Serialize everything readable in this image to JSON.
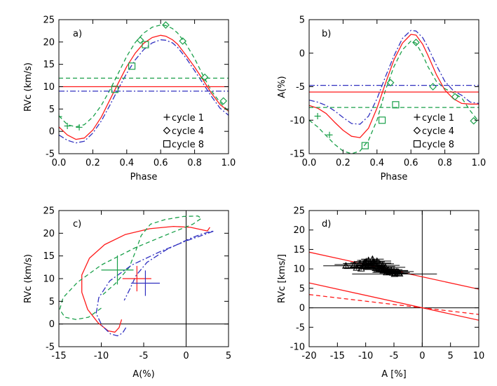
{
  "colors": {
    "red": "#ff1a1a",
    "green": "#1aa04a",
    "blue": "#3030c0",
    "black": "#000000"
  },
  "chart_data": [
    {
      "type": "line",
      "panel_label": "a)",
      "xlabel": "Phase",
      "ylabel": "RVc (km/s)",
      "xlim": [
        0.0,
        1.0
      ],
      "ylim": [
        -5,
        25
      ],
      "xticks": [
        "0.0",
        "0.2",
        "0.4",
        "0.6",
        "0.8",
        "1.0"
      ],
      "yticks": [
        "-5",
        "0",
        "5",
        "10",
        "15",
        "20",
        "25"
      ],
      "series": [
        {
          "color": "red",
          "style": "solid",
          "x": [
            0.0,
            0.05,
            0.1,
            0.15,
            0.2,
            0.25,
            0.3,
            0.35,
            0.4,
            0.45,
            0.5,
            0.55,
            0.6,
            0.63,
            0.67,
            0.7,
            0.75,
            0.8,
            0.85,
            0.9,
            0.95,
            1.0
          ],
          "y": [
            1.0,
            -0.8,
            -1.8,
            -1.5,
            0.3,
            3.2,
            7.0,
            10.8,
            14.5,
            17.5,
            19.7,
            21.0,
            21.5,
            21.3,
            20.5,
            19.5,
            17.0,
            14.4,
            11.5,
            8.5,
            6.0,
            4.5
          ]
        },
        {
          "color": "green",
          "style": "dashed",
          "x": [
            0.0,
            0.05,
            0.1,
            0.15,
            0.2,
            0.25,
            0.3,
            0.35,
            0.4,
            0.45,
            0.5,
            0.55,
            0.6,
            0.63,
            0.67,
            0.7,
            0.75,
            0.8,
            0.85,
            0.9,
            0.95,
            1.0
          ],
          "y": [
            3.5,
            1.5,
            1.0,
            1.5,
            3.2,
            5.8,
            9.2,
            13.0,
            16.8,
            19.9,
            22.0,
            23.3,
            23.8,
            23.7,
            23.0,
            22.0,
            19.5,
            16.3,
            12.5,
            9.0,
            6.5,
            4.5
          ]
        },
        {
          "color": "blue",
          "style": "dashdot",
          "x": [
            0.0,
            0.05,
            0.1,
            0.15,
            0.2,
            0.25,
            0.3,
            0.35,
            0.4,
            0.45,
            0.5,
            0.55,
            0.6,
            0.63,
            0.67,
            0.7,
            0.75,
            0.8,
            0.85,
            0.9,
            0.95,
            1.0
          ],
          "y": [
            -0.8,
            -2.0,
            -2.6,
            -2.2,
            -0.4,
            2.3,
            5.8,
            9.5,
            13.0,
            16.0,
            18.3,
            19.8,
            20.5,
            20.4,
            19.8,
            18.8,
            16.4,
            13.6,
            10.7,
            7.8,
            5.2,
            3.6
          ]
        },
        {
          "color": "red",
          "style": "solid",
          "x": [
            0.0,
            1.0
          ],
          "y": [
            10.0,
            10.0
          ]
        },
        {
          "color": "green",
          "style": "dashed",
          "x": [
            0.0,
            1.0
          ],
          "y": [
            11.9,
            11.9
          ]
        },
        {
          "color": "blue",
          "style": "dashdot",
          "x": [
            0.0,
            1.0
          ],
          "y": [
            9.0,
            9.0
          ]
        }
      ],
      "markers": [
        {
          "shape": "plus",
          "color": "green",
          "x": 0.0,
          "y": 3.3
        },
        {
          "shape": "plus",
          "color": "green",
          "x": 0.05,
          "y": 1.2
        },
        {
          "shape": "plus",
          "color": "green",
          "x": 0.12,
          "y": 0.9
        },
        {
          "shape": "square",
          "color": "green",
          "x": 0.33,
          "y": 9.4
        },
        {
          "shape": "square",
          "color": "green",
          "x": 0.43,
          "y": 14.6
        },
        {
          "shape": "diamond",
          "color": "green",
          "x": 0.48,
          "y": 20.4
        },
        {
          "shape": "square",
          "color": "green",
          "x": 0.51,
          "y": 19.4
        },
        {
          "shape": "diamond",
          "color": "green",
          "x": 0.63,
          "y": 23.8
        },
        {
          "shape": "diamond",
          "color": "green",
          "x": 0.73,
          "y": 20.2
        },
        {
          "shape": "diamond",
          "color": "green",
          "x": 0.86,
          "y": 12.1
        },
        {
          "shape": "diamond",
          "color": "green",
          "x": 0.97,
          "y": 6.8
        }
      ],
      "legend": {
        "position": "bottom-right",
        "entries": [
          {
            "symbol": "plus",
            "label": "cycle 1"
          },
          {
            "symbol": "diamond",
            "label": "cycle 4"
          },
          {
            "symbol": "square",
            "label": "cycle 8"
          }
        ]
      }
    },
    {
      "type": "line",
      "panel_label": "b)",
      "xlabel": "Phase",
      "ylabel": "A(%)",
      "xlim": [
        0.0,
        1.0
      ],
      "ylim": [
        -15,
        5
      ],
      "xticks": [
        "0.0",
        "0.2",
        "0.4",
        "0.6",
        "0.8",
        "1.0"
      ],
      "yticks": [
        "-15",
        "-10",
        "-5",
        "0",
        "5"
      ],
      "series": [
        {
          "color": "red",
          "style": "solid",
          "x": [
            0.0,
            0.05,
            0.1,
            0.15,
            0.2,
            0.25,
            0.3,
            0.35,
            0.4,
            0.45,
            0.5,
            0.55,
            0.6,
            0.63,
            0.67,
            0.7,
            0.75,
            0.8,
            0.85,
            0.9,
            0.95,
            1.0
          ],
          "y": [
            -7.8,
            -8.2,
            -9.0,
            -10.3,
            -11.5,
            -12.4,
            -12.6,
            -11.2,
            -8.2,
            -4.5,
            -1.0,
            1.5,
            2.8,
            2.7,
            1.3,
            -0.3,
            -3.2,
            -5.5,
            -6.8,
            -7.5,
            -7.6,
            -7.6
          ]
        },
        {
          "color": "green",
          "style": "dashed",
          "x": [
            0.0,
            0.05,
            0.1,
            0.15,
            0.2,
            0.25,
            0.3,
            0.35,
            0.4,
            0.45,
            0.5,
            0.55,
            0.6,
            0.63,
            0.67,
            0.7,
            0.75,
            0.8,
            0.85,
            0.9,
            0.95,
            1.0
          ],
          "y": [
            -10.0,
            -11.0,
            -12.3,
            -13.6,
            -14.6,
            -15.0,
            -14.6,
            -13.0,
            -10.0,
            -5.5,
            -2.0,
            0.5,
            1.8,
            1.5,
            -0.3,
            -2.0,
            -4.2,
            -5.3,
            -5.9,
            -6.7,
            -8.6,
            -10.2
          ]
        },
        {
          "color": "blue",
          "style": "dashdot",
          "x": [
            0.0,
            0.05,
            0.1,
            0.15,
            0.2,
            0.25,
            0.3,
            0.35,
            0.4,
            0.45,
            0.5,
            0.55,
            0.6,
            0.63,
            0.67,
            0.7,
            0.75,
            0.8,
            0.85,
            0.9,
            0.95,
            1.0
          ],
          "y": [
            -7.0,
            -7.3,
            -7.8,
            -8.6,
            -9.6,
            -10.5,
            -10.6,
            -9.4,
            -6.8,
            -3.5,
            -0.4,
            2.2,
            3.4,
            3.3,
            2.3,
            0.9,
            -1.8,
            -4.2,
            -5.6,
            -6.3,
            -7.3,
            -7.5
          ]
        },
        {
          "color": "red",
          "style": "solid",
          "x": [
            0.0,
            1.0
          ],
          "y": [
            -5.8,
            -5.8
          ]
        },
        {
          "color": "green",
          "style": "dashed",
          "x": [
            0.0,
            1.0
          ],
          "y": [
            -8.1,
            -8.1
          ]
        },
        {
          "color": "blue",
          "style": "dashdot",
          "x": [
            0.0,
            1.0
          ],
          "y": [
            -4.8,
            -4.8
          ]
        }
      ],
      "markers": [
        {
          "shape": "plus",
          "color": "green",
          "x": 0.05,
          "y": -9.4
        },
        {
          "shape": "plus",
          "color": "green",
          "x": 0.12,
          "y": -12.2
        },
        {
          "shape": "square",
          "color": "green",
          "x": 0.33,
          "y": -13.8
        },
        {
          "shape": "square",
          "color": "green",
          "x": 0.43,
          "y": -10.0
        },
        {
          "shape": "diamond",
          "color": "green",
          "x": 0.48,
          "y": -4.4
        },
        {
          "shape": "square",
          "color": "green",
          "x": 0.51,
          "y": -7.7
        },
        {
          "shape": "diamond",
          "color": "green",
          "x": 0.63,
          "y": 1.6
        },
        {
          "shape": "diamond",
          "color": "green",
          "x": 0.73,
          "y": -5.0
        },
        {
          "shape": "diamond",
          "color": "green",
          "x": 0.86,
          "y": -6.5
        },
        {
          "shape": "diamond",
          "color": "green",
          "x": 0.97,
          "y": -10.1
        }
      ],
      "legend": {
        "position": "bottom-right",
        "entries": [
          {
            "symbol": "plus",
            "label": "cycle 1"
          },
          {
            "symbol": "diamond",
            "label": "cycle 4"
          },
          {
            "symbol": "square",
            "label": "cycle 8"
          }
        ]
      }
    },
    {
      "type": "line",
      "panel_label": "c)",
      "xlabel": "A(%)",
      "ylabel": "RVc (km/s)",
      "xlim": [
        -15,
        5
      ],
      "ylim": [
        -5,
        25
      ],
      "xticks": [
        "-15",
        "-10",
        "-5",
        "0",
        "5"
      ],
      "yticks": [
        "-5",
        "0",
        "5",
        "10",
        "15",
        "20",
        "25"
      ],
      "series": [
        {
          "color": "red",
          "style": "solid",
          "x": [
            -7.6,
            -7.9,
            -8.4,
            -9.2,
            -10.4,
            -11.6,
            -12.3,
            -12.3,
            -11.4,
            -9.6,
            -7.2,
            -4.3,
            -1.5,
            0.5,
            1.8,
            2.5,
            2.8
          ],
          "y": [
            1.0,
            -0.8,
            -1.8,
            -1.5,
            0.3,
            3.2,
            7.0,
            10.8,
            14.5,
            17.5,
            19.7,
            21.0,
            21.5,
            21.3,
            20.8,
            20.5,
            21.3
          ]
        },
        {
          "color": "green",
          "style": "dashed",
          "x": [
            -10.0,
            -11.5,
            -13.0,
            -14.3,
            -14.9,
            -14.5,
            -12.8,
            -10.0,
            -6.0,
            -2.0,
            0.8,
            1.8,
            1.4,
            -0.3,
            -2.5,
            -4.2,
            -5.3,
            -5.9,
            -6.7,
            -8.3,
            -9.8
          ],
          "y": [
            3.5,
            1.5,
            1.0,
            1.5,
            3.2,
            5.8,
            9.2,
            13.0,
            16.8,
            19.9,
            22.0,
            23.3,
            23.8,
            23.7,
            23.0,
            22.0,
            19.5,
            16.3,
            12.5,
            9.0,
            6.5
          ]
        },
        {
          "color": "blue",
          "style": "dashdot",
          "x": [
            -7.1,
            -7.5,
            -8.1,
            -8.9,
            -9.9,
            -10.6,
            -10.3,
            -9.0,
            -6.4,
            -3.0,
            0.0,
            2.3,
            3.3,
            3.0,
            1.8,
            0.4,
            -2.3,
            -4.6,
            -5.9,
            -6.6,
            -7.3
          ],
          "y": [
            -0.8,
            -2.0,
            -2.6,
            -2.2,
            -0.4,
            2.3,
            5.8,
            9.5,
            13.0,
            16.0,
            18.3,
            19.8,
            20.5,
            20.4,
            19.8,
            18.8,
            16.4,
            13.6,
            10.7,
            7.8,
            5.2
          ]
        }
      ],
      "reference_lines": {
        "x0": 0,
        "y0": 0
      },
      "crosses": [
        {
          "color": "green",
          "x": -8.1,
          "y": 11.9,
          "xerr": 1.9,
          "yerr": 3.2
        },
        {
          "color": "red",
          "x": -5.8,
          "y": 10.0,
          "xerr": 1.7,
          "yerr": 2.8
        },
        {
          "color": "blue",
          "x": -4.8,
          "y": 9.0,
          "xerr": 1.7,
          "yerr": 2.8
        }
      ]
    },
    {
      "type": "scatter",
      "panel_label": "d)",
      "xlabel": "A [%]",
      "ylabel": "RVc [kms/]",
      "xlim": [
        -20,
        10
      ],
      "ylim": [
        -10,
        25
      ],
      "xticks": [
        "-20",
        "-15",
        "-10",
        "-5",
        "0",
        "5",
        "10"
      ],
      "yticks": [
        "-10",
        "-5",
        "0",
        "5",
        "10",
        "15",
        "20",
        "25"
      ],
      "reference_lines": {
        "x0": 0,
        "y0": 0
      },
      "lines": [
        {
          "color": "red",
          "style": "solid",
          "x": [
            -20,
            10
          ],
          "y": [
            14.3,
            4.8
          ]
        },
        {
          "color": "red",
          "style": "solid",
          "x": [
            -20,
            10
          ],
          "y": [
            6.4,
            -3.2
          ]
        },
        {
          "color": "red",
          "style": "dashed",
          "x": [
            -20,
            10
          ],
          "y": [
            3.4,
            -1.7
          ]
        }
      ],
      "points": {
        "marker": "triangle",
        "color": "black",
        "x": [
          -13.5,
          -12.0,
          -11.0,
          -10.5,
          -10.2,
          -9.8,
          -9.5,
          -9.0,
          -8.8,
          -8.5,
          -8.2,
          -8.0,
          -7.8,
          -7.5,
          -7.2,
          -7.0,
          -6.8,
          -6.5,
          -6.2,
          -6.0,
          -5.8,
          -5.5,
          -5.2,
          -5.0,
          -4.8,
          -4.5,
          -4.2,
          -4.0,
          -10.8,
          -9.2,
          -8.6,
          -7.6,
          -6.9,
          -6.3,
          -5.6,
          -4.9,
          -11.6,
          -9.9
        ],
        "y": [
          10.8,
          11.1,
          11.4,
          10.8,
          11.6,
          10.5,
          12.2,
          11.0,
          12.5,
          11.5,
          10.2,
          12.0,
          10.6,
          11.3,
          9.8,
          10.9,
          10.0,
          10.4,
          9.4,
          9.8,
          9.2,
          9.6,
          9.0,
          9.4,
          8.9,
          9.3,
          9.0,
          8.8,
          10.1,
          10.9,
          11.8,
          10.0,
          9.6,
          9.1,
          9.3,
          8.7,
          10.3,
          11.9
        ],
        "xerr": [
          4.0,
          3.5,
          3.0,
          3.5,
          2.5,
          3.0,
          2.0,
          2.5,
          2.0,
          3.0,
          2.0,
          2.5,
          3.0,
          2.5,
          2.0,
          3.0,
          2.0,
          3.5,
          2.0,
          2.5,
          2.0,
          3.0,
          2.0,
          2.5,
          2.0,
          3.0,
          2.0,
          1.5,
          3.0,
          2.5,
          2.0,
          3.5,
          2.0,
          2.5,
          3.0,
          7.5,
          2.5,
          2.0
        ],
        "yerr": [
          0.6,
          0.6,
          0.7,
          0.6,
          0.6,
          0.5,
          0.8,
          0.6,
          0.7,
          0.6,
          0.5,
          0.6,
          0.5,
          0.6,
          0.5,
          0.6,
          0.5,
          0.6,
          0.5,
          0.5,
          0.5,
          0.5,
          0.5,
          0.5,
          0.5,
          0.5,
          0.5,
          0.4,
          0.5,
          0.6,
          0.6,
          0.5,
          0.5,
          0.5,
          0.5,
          0.5,
          0.5,
          0.6
        ]
      }
    }
  ]
}
